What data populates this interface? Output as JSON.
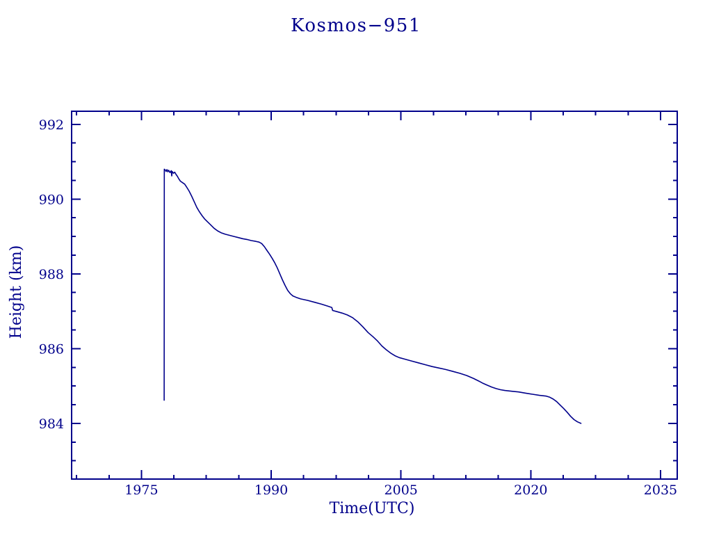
{
  "page": {
    "background_color": "#ffffff",
    "accent_color": "#00008b"
  },
  "chart_data": {
    "type": "line",
    "title": "Kosmos−951",
    "xlabel": "Time(UTC)",
    "ylabel": "Height (km)",
    "xlim": [
      1966.93,
      2036.93
    ],
    "ylim": [
      982.51,
      992.35
    ],
    "xticks": [
      1975,
      1990,
      2005,
      2020,
      2035
    ],
    "yticks": [
      984,
      986,
      988,
      990,
      992
    ],
    "x_minor_step": 3.75,
    "y_minor_step": 0.5,
    "grid": false,
    "legend_position": "none",
    "line_color": "#00008b",
    "ticks_direction": "in",
    "frame": "box",
    "series": [
      {
        "name": "orbit-height",
        "points": [
          [
            1977.63,
            984.62
          ],
          [
            1977.64,
            990.8
          ],
          [
            1977.75,
            990.78
          ],
          [
            1977.85,
            990.74
          ],
          [
            1977.95,
            990.79
          ],
          [
            1978.05,
            990.73
          ],
          [
            1978.15,
            990.77
          ],
          [
            1978.3,
            990.71
          ],
          [
            1978.45,
            990.76
          ],
          [
            1978.5,
            990.62
          ],
          [
            1978.55,
            990.74
          ],
          [
            1978.7,
            990.69
          ],
          [
            1978.85,
            990.72
          ],
          [
            1979.0,
            990.66
          ],
          [
            1979.15,
            990.61
          ],
          [
            1979.3,
            990.55
          ],
          [
            1979.5,
            990.48
          ],
          [
            1979.75,
            990.44
          ],
          [
            1980.0,
            990.4
          ],
          [
            1980.2,
            990.33
          ],
          [
            1980.5,
            990.22
          ],
          [
            1980.8,
            990.08
          ],
          [
            1981.1,
            989.93
          ],
          [
            1981.4,
            989.78
          ],
          [
            1981.7,
            989.66
          ],
          [
            1982.0,
            989.56
          ],
          [
            1982.3,
            989.47
          ],
          [
            1982.6,
            989.4
          ],
          [
            1983.0,
            989.31
          ],
          [
            1983.4,
            989.22
          ],
          [
            1983.8,
            989.15
          ],
          [
            1984.2,
            989.1
          ],
          [
            1984.7,
            989.06
          ],
          [
            1985.2,
            989.03
          ],
          [
            1985.7,
            989.0
          ],
          [
            1986.2,
            988.97
          ],
          [
            1986.7,
            988.94
          ],
          [
            1987.2,
            988.92
          ],
          [
            1987.7,
            988.89
          ],
          [
            1988.2,
            988.87
          ],
          [
            1988.6,
            988.85
          ],
          [
            1988.9,
            988.81
          ],
          [
            1989.2,
            988.73
          ],
          [
            1989.5,
            988.63
          ],
          [
            1989.8,
            988.53
          ],
          [
            1990.1,
            988.42
          ],
          [
            1990.4,
            988.3
          ],
          [
            1990.7,
            988.16
          ],
          [
            1991.0,
            988.0
          ],
          [
            1991.3,
            987.84
          ],
          [
            1991.6,
            987.69
          ],
          [
            1991.9,
            987.56
          ],
          [
            1992.2,
            987.47
          ],
          [
            1992.5,
            987.41
          ],
          [
            1992.9,
            987.37
          ],
          [
            1993.4,
            987.33
          ],
          [
            1994.2,
            987.29
          ],
          [
            1995.0,
            987.24
          ],
          [
            1995.8,
            987.19
          ],
          [
            1996.5,
            987.14
          ],
          [
            1997.0,
            987.1
          ],
          [
            1997.1,
            987.02
          ],
          [
            1997.6,
            986.99
          ],
          [
            1998.2,
            986.95
          ],
          [
            1998.8,
            986.9
          ],
          [
            1999.4,
            986.83
          ],
          [
            2000.0,
            986.72
          ],
          [
            2000.6,
            986.58
          ],
          [
            2001.2,
            986.43
          ],
          [
            2001.8,
            986.31
          ],
          [
            2002.3,
            986.2
          ],
          [
            2002.8,
            986.07
          ],
          [
            2003.3,
            985.97
          ],
          [
            2003.8,
            985.88
          ],
          [
            2004.3,
            985.81
          ],
          [
            2004.8,
            985.76
          ],
          [
            2005.4,
            985.72
          ],
          [
            2006.2,
            985.67
          ],
          [
            2007.0,
            985.62
          ],
          [
            2007.8,
            985.57
          ],
          [
            2008.6,
            985.52
          ],
          [
            2009.4,
            985.48
          ],
          [
            2010.2,
            985.44
          ],
          [
            2011.0,
            985.39
          ],
          [
            2011.8,
            985.34
          ],
          [
            2012.6,
            985.28
          ],
          [
            2013.4,
            985.2
          ],
          [
            2014.0,
            985.13
          ],
          [
            2014.5,
            985.07
          ],
          [
            2015.0,
            985.02
          ],
          [
            2015.5,
            984.97
          ],
          [
            2016.0,
            984.93
          ],
          [
            2016.5,
            984.9
          ],
          [
            2017.0,
            984.88
          ],
          [
            2017.8,
            984.86
          ],
          [
            2018.6,
            984.84
          ],
          [
            2019.4,
            984.81
          ],
          [
            2020.2,
            984.78
          ],
          [
            2021.0,
            984.75
          ],
          [
            2021.8,
            984.73
          ],
          [
            2022.2,
            984.7
          ],
          [
            2022.6,
            984.65
          ],
          [
            2023.0,
            984.58
          ],
          [
            2023.4,
            984.49
          ],
          [
            2023.8,
            984.4
          ],
          [
            2024.2,
            984.3
          ],
          [
            2024.6,
            984.19
          ],
          [
            2025.0,
            984.1
          ],
          [
            2025.4,
            984.04
          ],
          [
            2025.8,
            984.0
          ]
        ]
      }
    ]
  }
}
